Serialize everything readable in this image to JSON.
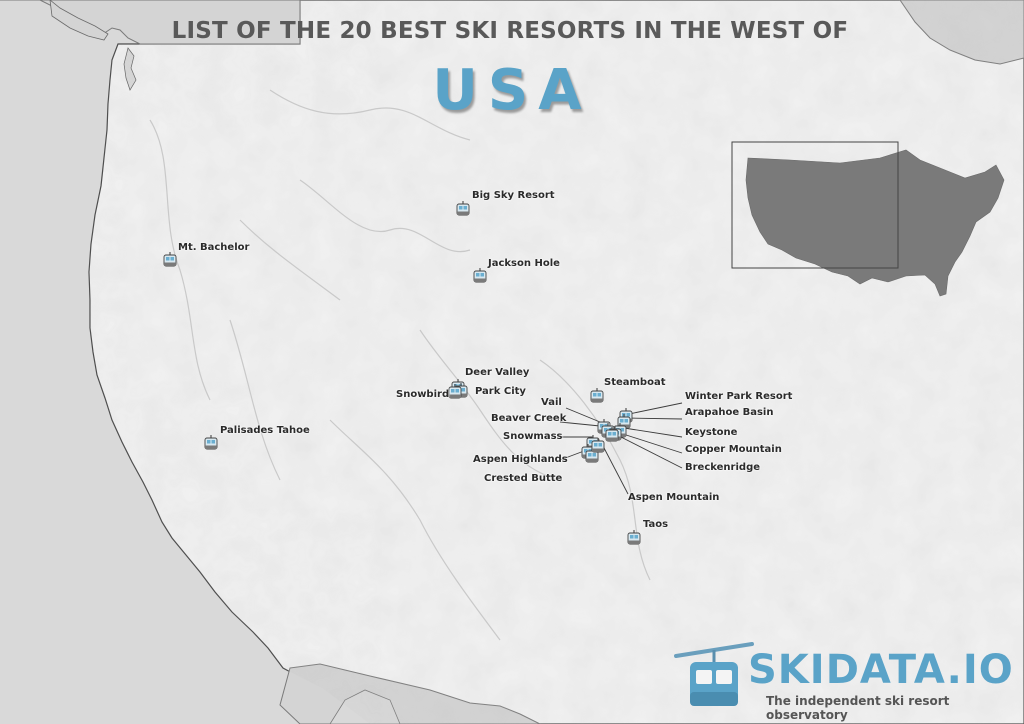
{
  "title": {
    "line1": "LIST OF THE 20 BEST SKI RESORTS IN THE WEST OF",
    "line2": "USA"
  },
  "colors": {
    "land": "#f2f2f2",
    "sea": "#d9d9d9",
    "accent": "#5aa3c8",
    "title_gray": "#595959",
    "inset_us": "#7a7a7a"
  },
  "marker_icon": "gondola-cabin-icon",
  "resorts": [
    {
      "name": "Big Sky Resort"
    },
    {
      "name": "Mt. Bachelor"
    },
    {
      "name": "Jackson Hole"
    },
    {
      "name": "Deer Valley"
    },
    {
      "name": "Park City"
    },
    {
      "name": "Snowbird"
    },
    {
      "name": "Steamboat"
    },
    {
      "name": "Winter Park Resort"
    },
    {
      "name": "Arapahoe Basin"
    },
    {
      "name": "Vail"
    },
    {
      "name": "Beaver Creek"
    },
    {
      "name": "Keystone"
    },
    {
      "name": "Snowmass"
    },
    {
      "name": "Copper Mountain"
    },
    {
      "name": "Aspen Highlands"
    },
    {
      "name": "Breckenridge"
    },
    {
      "name": "Crested Butte"
    },
    {
      "name": "Aspen Mountain"
    },
    {
      "name": "Palisades Tahoe"
    },
    {
      "name": "Taos"
    }
  ],
  "logo": {
    "name": "SKIDATA.IO",
    "tagline": "The independent ski resort observatory",
    "icon": "gondola-logo-icon"
  }
}
